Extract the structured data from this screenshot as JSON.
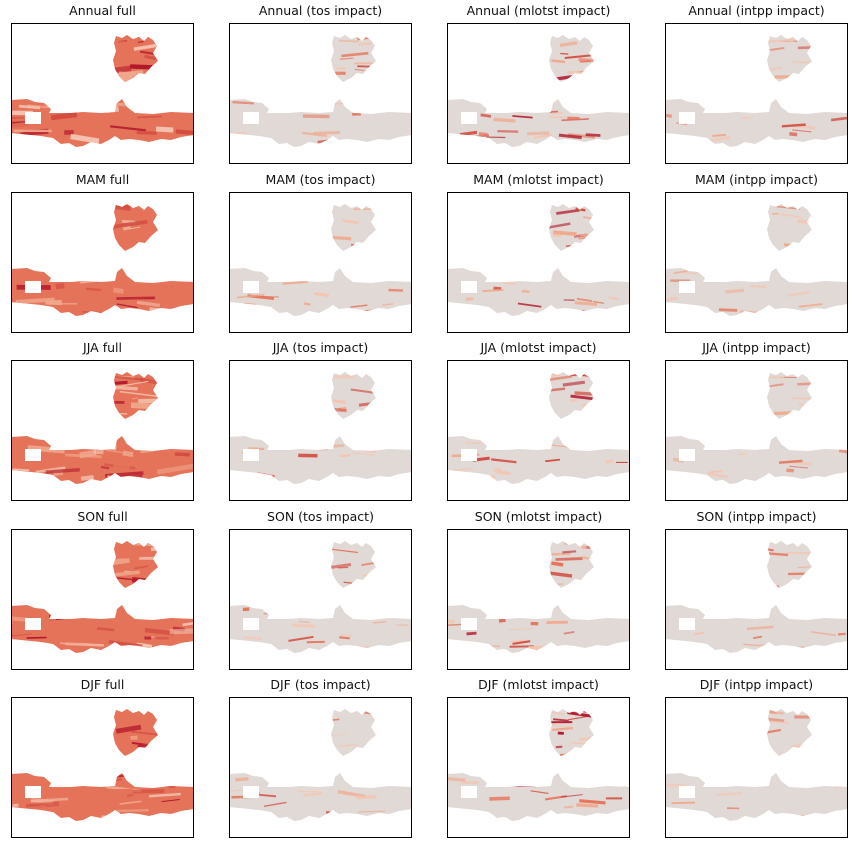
{
  "figure": {
    "rows": [
      "Annual",
      "MAM",
      "JJA",
      "SON",
      "DJF"
    ],
    "cols": [
      "full",
      "tos impact",
      "mlotst impact",
      "intpp impact"
    ],
    "colors": {
      "background": "#ffffff",
      "neutral": "#e1d9d5",
      "pale": "#f4c5b1",
      "light": "#f0a98d",
      "mid": "#e5735a",
      "strong": "#d24b40",
      "deep": "#b2162b",
      "frame": "#000000"
    }
  },
  "chart_data": {
    "type": "heatmap",
    "colormap": "RdBu_r (red half)",
    "grid": false,
    "panels": [
      {
        "title": "Annual full",
        "row": 0,
        "col": 0,
        "intensity": 0.85
      },
      {
        "title": "Annual (tos impact)",
        "row": 0,
        "col": 1,
        "intensity": 0.25
      },
      {
        "title": "Annual (mlotst impact)",
        "row": 0,
        "col": 2,
        "intensity": 0.55
      },
      {
        "title": "Annual (intpp impact)",
        "row": 0,
        "col": 3,
        "intensity": 0.3
      },
      {
        "title": "MAM full",
        "row": 1,
        "col": 0,
        "intensity": 0.75
      },
      {
        "title": "MAM (tos impact)",
        "row": 1,
        "col": 1,
        "intensity": 0.2
      },
      {
        "title": "MAM (mlotst impact)",
        "row": 1,
        "col": 2,
        "intensity": 0.6
      },
      {
        "title": "MAM (intpp impact)",
        "row": 1,
        "col": 3,
        "intensity": 0.2
      },
      {
        "title": "JJA full",
        "row": 2,
        "col": 0,
        "intensity": 0.9
      },
      {
        "title": "JJA (tos impact)",
        "row": 2,
        "col": 1,
        "intensity": 0.3
      },
      {
        "title": "JJA (mlotst impact)",
        "row": 2,
        "col": 2,
        "intensity": 0.5
      },
      {
        "title": "JJA (intpp impact)",
        "row": 2,
        "col": 3,
        "intensity": 0.2
      },
      {
        "title": "SON full",
        "row": 3,
        "col": 0,
        "intensity": 0.85
      },
      {
        "title": "SON (tos impact)",
        "row": 3,
        "col": 1,
        "intensity": 0.3
      },
      {
        "title": "SON (mlotst impact)",
        "row": 3,
        "col": 2,
        "intensity": 0.5
      },
      {
        "title": "SON (intpp impact)",
        "row": 3,
        "col": 3,
        "intensity": 0.2
      },
      {
        "title": "DJF full",
        "row": 4,
        "col": 0,
        "intensity": 0.75
      },
      {
        "title": "DJF (tos impact)",
        "row": 4,
        "col": 1,
        "intensity": 0.3
      },
      {
        "title": "DJF (mlotst impact)",
        "row": 4,
        "col": 2,
        "intensity": 0.55
      },
      {
        "title": "DJF (intpp impact)",
        "row": 4,
        "col": 3,
        "intensity": 0.2
      }
    ]
  }
}
